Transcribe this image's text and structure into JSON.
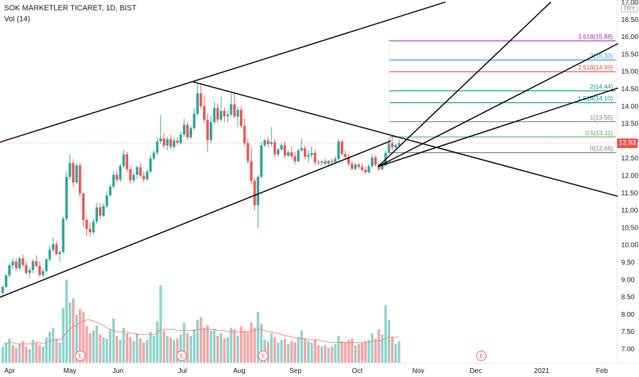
{
  "header": {
    "symbol_line": "SOK MARKETLER TICARET, 1D, BIST",
    "volume_line": "Vol (14)",
    "currency": "TRY"
  },
  "colors": {
    "up": "#26a69a",
    "down": "#ef5350",
    "vol_up": "#8dd3cd",
    "vol_down": "#f5a3a2",
    "vol_ma": "#f08a66",
    "trend": "#000000",
    "grid_text": "#131722"
  },
  "chart_data": {
    "type": "candlestick",
    "title": "SOK MARKETLER TICARET, 1D, BIST",
    "ylim": [
      6.4,
      17.0
    ],
    "last_price": "12.93",
    "y_ticks": [
      "17.00",
      "16.50",
      "16.00",
      "15.50",
      "15.00",
      "14.50",
      "14.00",
      "13.50",
      "13.00",
      "12.50",
      "12.00",
      "11.50",
      "11.00",
      "10.50",
      "10.00",
      "9.50",
      "9.00",
      "8.50",
      "8.00",
      "7.50",
      "7.00"
    ],
    "x_ticks": [
      "Apr",
      "May",
      "Jun",
      "Jul",
      "Aug",
      "Sep",
      "Oct",
      "Nov",
      "Dec",
      "2021",
      "Feb"
    ],
    "events": [
      "E",
      "E",
      "E",
      "E"
    ],
    "fib_levels": [
      {
        "label": "3.618(15.88)",
        "value": 15.88,
        "color": "#9c27b0"
      },
      {
        "label": "3(15.33)",
        "value": 15.33,
        "color": "#2196f3"
      },
      {
        "label": "2.618(14.99)",
        "value": 14.99,
        "color": "#f44336"
      },
      {
        "label": "2(14.44)",
        "value": 14.44,
        "color": "#089981"
      },
      {
        "label": "1.618(14.10)",
        "value": 14.1,
        "color": "#0097a7"
      },
      {
        "label": "1(13.55)",
        "value": 13.55,
        "color": "#787b86"
      },
      {
        "label": "0.5(13.11)",
        "value": 13.11,
        "color": "#4caf50"
      },
      {
        "label": "0(12.66)",
        "value": 12.66,
        "color": "#787b86"
      }
    ],
    "trend_lines": [
      {
        "name": "channel-upper",
        "from": [
          0.0,
          12.96
        ],
        "to": [
          0.697,
          17.0
        ]
      },
      {
        "name": "channel-lower",
        "from": [
          0.0,
          8.49
        ],
        "to": [
          0.612,
          13.0
        ]
      },
      {
        "name": "descending",
        "from": [
          0.302,
          14.7
        ],
        "to": [
          0.967,
          11.4
        ]
      },
      {
        "name": "fan-1",
        "from": [
          0.592,
          12.26
        ],
        "to": [
          0.862,
          17.0
        ]
      },
      {
        "name": "fan-2",
        "from": [
          0.592,
          12.26
        ],
        "to": [
          0.967,
          15.8
        ]
      },
      {
        "name": "fan-3",
        "from": [
          0.592,
          12.26
        ],
        "to": [
          0.967,
          14.52
        ]
      }
    ],
    "candles": [
      [
        8.61,
        8.81,
        8.55,
        8.79
      ],
      [
        8.79,
        9.18,
        8.74,
        9.12
      ],
      [
        9.12,
        9.47,
        9.06,
        9.41
      ],
      [
        9.41,
        9.62,
        9.3,
        9.52
      ],
      [
        9.52,
        9.62,
        9.24,
        9.33
      ],
      [
        9.33,
        9.66,
        9.28,
        9.61
      ],
      [
        9.61,
        9.72,
        9.36,
        9.42
      ],
      [
        9.42,
        9.52,
        9.13,
        9.19
      ],
      [
        9.19,
        9.34,
        9.03,
        9.27
      ],
      [
        9.27,
        9.59,
        9.18,
        9.53
      ],
      [
        9.53,
        9.7,
        9.34,
        9.39
      ],
      [
        9.39,
        9.52,
        9.08,
        9.13
      ],
      [
        9.13,
        9.32,
        9.06,
        9.24
      ],
      [
        9.24,
        9.62,
        9.21,
        9.58
      ],
      [
        9.58,
        9.98,
        9.52,
        9.86
      ],
      [
        9.86,
        10.21,
        9.78,
        10.02
      ],
      [
        10.02,
        10.11,
        9.69,
        9.73
      ],
      [
        9.73,
        9.85,
        9.52,
        9.79
      ],
      [
        9.79,
        10.82,
        9.74,
        10.75
      ],
      [
        10.75,
        12.09,
        10.67,
        11.96
      ],
      [
        11.96,
        12.62,
        11.88,
        12.36
      ],
      [
        12.36,
        12.47,
        11.66,
        11.8
      ],
      [
        11.8,
        12.37,
        11.74,
        12.29
      ],
      [
        12.29,
        12.36,
        11.38,
        11.48
      ],
      [
        11.48,
        11.52,
        10.52,
        10.72
      ],
      [
        10.72,
        10.77,
        10.26,
        10.46
      ],
      [
        10.46,
        10.64,
        10.25,
        10.36
      ],
      [
        10.36,
        10.78,
        10.29,
        10.67
      ],
      [
        10.67,
        11.21,
        10.6,
        11.08
      ],
      [
        11.08,
        11.21,
        10.71,
        10.84
      ],
      [
        10.84,
        11.19,
        10.8,
        11.12
      ],
      [
        11.12,
        11.55,
        11.05,
        11.43
      ],
      [
        11.43,
        11.75,
        11.38,
        11.68
      ],
      [
        11.68,
        12.11,
        11.62,
        12.02
      ],
      [
        12.02,
        12.13,
        11.79,
        11.88
      ],
      [
        11.88,
        12.34,
        11.81,
        12.27
      ],
      [
        12.27,
        12.73,
        12.21,
        12.61
      ],
      [
        12.61,
        12.68,
        12.09,
        12.18
      ],
      [
        12.18,
        12.27,
        11.76,
        11.86
      ],
      [
        11.86,
        12.09,
        11.79,
        12.02
      ],
      [
        12.02,
        12.29,
        11.9,
        12.24
      ],
      [
        12.24,
        12.38,
        11.93,
        11.99
      ],
      [
        11.99,
        12.11,
        11.81,
        11.89
      ],
      [
        11.89,
        12.17,
        11.85,
        12.11
      ],
      [
        12.11,
        12.57,
        12.07,
        12.49
      ],
      [
        12.49,
        12.73,
        12.44,
        12.66
      ],
      [
        12.66,
        13.08,
        12.59,
        12.98
      ],
      [
        12.98,
        13.74,
        12.91,
        13.07
      ],
      [
        13.07,
        13.21,
        12.79,
        12.86
      ],
      [
        12.86,
        13.12,
        12.73,
        13.05
      ],
      [
        13.05,
        13.17,
        12.76,
        12.82
      ],
      [
        12.82,
        13.09,
        12.78,
        13.01
      ],
      [
        13.01,
        13.11,
        12.88,
        12.94
      ],
      [
        12.94,
        13.26,
        12.9,
        13.18
      ],
      [
        13.18,
        13.64,
        13.11,
        13.46
      ],
      [
        13.46,
        13.54,
        13.02,
        13.1
      ],
      [
        13.1,
        13.43,
        13.05,
        13.37
      ],
      [
        13.37,
        13.93,
        13.31,
        13.78
      ],
      [
        13.78,
        14.68,
        13.71,
        14.37
      ],
      [
        14.37,
        14.66,
        13.91,
        14.0
      ],
      [
        14.0,
        14.31,
        13.52,
        13.6
      ],
      [
        13.6,
        13.79,
        12.68,
        13.02
      ],
      [
        13.02,
        13.72,
        12.94,
        13.54
      ],
      [
        13.54,
        14.12,
        13.47,
        13.95
      ],
      [
        13.95,
        14.06,
        13.52,
        13.61
      ],
      [
        13.61,
        14.27,
        13.55,
        13.86
      ],
      [
        13.86,
        13.96,
        13.52,
        13.71
      ],
      [
        13.71,
        13.89,
        13.51,
        13.76
      ],
      [
        13.76,
        14.37,
        13.69,
        14.05
      ],
      [
        14.05,
        14.38,
        13.62,
        13.7
      ],
      [
        13.7,
        13.97,
        13.4,
        13.89
      ],
      [
        13.89,
        14.0,
        13.36,
        13.43
      ],
      [
        13.43,
        13.64,
        12.85,
        12.93
      ],
      [
        12.93,
        13.06,
        12.33,
        12.41
      ],
      [
        12.41,
        12.79,
        11.74,
        11.85
      ],
      [
        11.85,
        11.92,
        11.0,
        11.14
      ],
      [
        11.14,
        12.01,
        10.48,
        11.96
      ],
      [
        11.96,
        12.97,
        11.91,
        12.87
      ],
      [
        12.87,
        13.06,
        12.83,
        13.01
      ],
      [
        13.01,
        13.12,
        12.82,
        12.91
      ],
      [
        12.91,
        13.4,
        12.84,
        12.96
      ],
      [
        12.96,
        13.06,
        12.53,
        12.61
      ],
      [
        12.61,
        12.79,
        12.55,
        12.75
      ],
      [
        12.75,
        12.94,
        12.71,
        12.88
      ],
      [
        12.88,
        12.97,
        12.49,
        12.57
      ],
      [
        12.57,
        12.73,
        12.53,
        12.67
      ],
      [
        12.67,
        12.84,
        12.5,
        12.55
      ],
      [
        12.55,
        12.67,
        12.32,
        12.41
      ],
      [
        12.41,
        12.77,
        12.37,
        12.72
      ],
      [
        12.72,
        13.06,
        12.68,
        12.79
      ],
      [
        12.79,
        12.87,
        12.47,
        12.54
      ],
      [
        12.54,
        12.72,
        12.37,
        12.59
      ],
      [
        12.59,
        12.83,
        12.51,
        12.65
      ],
      [
        12.65,
        12.74,
        12.31,
        12.38
      ],
      [
        12.38,
        12.46,
        12.3,
        12.37
      ],
      [
        12.37,
        12.44,
        12.27,
        12.41
      ],
      [
        12.41,
        12.48,
        12.31,
        12.34
      ],
      [
        12.34,
        12.45,
        12.26,
        12.42
      ],
      [
        12.42,
        12.49,
        12.33,
        12.39
      ],
      [
        12.39,
        12.56,
        12.35,
        12.48
      ],
      [
        12.48,
        13.05,
        12.43,
        12.98
      ],
      [
        12.98,
        13.02,
        12.56,
        12.62
      ],
      [
        12.62,
        12.71,
        12.46,
        12.53
      ],
      [
        12.53,
        12.62,
        12.27,
        12.34
      ],
      [
        12.34,
        12.41,
        12.15,
        12.19
      ],
      [
        12.19,
        12.36,
        12.15,
        12.31
      ],
      [
        12.31,
        12.38,
        12.2,
        12.25
      ],
      [
        12.25,
        12.35,
        12.11,
        12.16
      ],
      [
        12.16,
        12.26,
        12.03,
        12.09
      ],
      [
        12.09,
        12.33,
        12.06,
        12.27
      ],
      [
        12.27,
        12.63,
        12.22,
        12.52
      ],
      [
        12.52,
        12.58,
        12.25,
        12.31
      ],
      [
        12.31,
        12.37,
        12.13,
        12.18
      ],
      [
        12.18,
        12.32,
        12.15,
        12.29
      ],
      [
        12.29,
        12.71,
        12.28,
        12.65
      ],
      [
        12.65,
        13.08,
        12.62,
        12.93
      ],
      [
        12.93,
        13.14,
        12.72,
        12.81
      ],
      [
        12.81,
        12.92,
        12.74,
        12.88
      ],
      [
        12.88,
        13.03,
        12.82,
        12.93
      ]
    ],
    "volume": [
      [
        1.2,
        1
      ],
      [
        1.5,
        1
      ],
      [
        1.8,
        1
      ],
      [
        1.3,
        0
      ],
      [
        1.1,
        0
      ],
      [
        1.4,
        1
      ],
      [
        1.6,
        0
      ],
      [
        1.2,
        0
      ],
      [
        1.0,
        1
      ],
      [
        1.7,
        1
      ],
      [
        1.5,
        0
      ],
      [
        1.3,
        0
      ],
      [
        1.2,
        1
      ],
      [
        1.9,
        1
      ],
      [
        2.3,
        1
      ],
      [
        2.6,
        1
      ],
      [
        1.8,
        0
      ],
      [
        1.5,
        1
      ],
      [
        4.1,
        1
      ],
      [
        6.2,
        1
      ],
      [
        4.5,
        1
      ],
      [
        4.8,
        0
      ],
      [
        3.6,
        1
      ],
      [
        4.0,
        0
      ],
      [
        3.8,
        0
      ],
      [
        2.7,
        0
      ],
      [
        2.2,
        0
      ],
      [
        2.4,
        1
      ],
      [
        2.8,
        1
      ],
      [
        2.1,
        0
      ],
      [
        1.9,
        1
      ],
      [
        1.8,
        1
      ],
      [
        2.5,
        1
      ],
      [
        3.3,
        1
      ],
      [
        2.0,
        0
      ],
      [
        1.7,
        1
      ],
      [
        2.6,
        1
      ],
      [
        2.2,
        0
      ],
      [
        1.9,
        0
      ],
      [
        1.6,
        1
      ],
      [
        2.2,
        1
      ],
      [
        1.8,
        0
      ],
      [
        1.5,
        0
      ],
      [
        1.7,
        1
      ],
      [
        2.3,
        1
      ],
      [
        2.0,
        1
      ],
      [
        3.1,
        1
      ],
      [
        5.8,
        1
      ],
      [
        2.4,
        0
      ],
      [
        2.0,
        1
      ],
      [
        1.9,
        0
      ],
      [
        1.7,
        1
      ],
      [
        1.8,
        0
      ],
      [
        2.1,
        1
      ],
      [
        3.0,
        1
      ],
      [
        2.2,
        0
      ],
      [
        2.0,
        1
      ],
      [
        2.5,
        1
      ],
      [
        3.2,
        1
      ],
      [
        3.4,
        0
      ],
      [
        2.6,
        0
      ],
      [
        2.8,
        0
      ],
      [
        2.4,
        1
      ],
      [
        2.5,
        1
      ],
      [
        2.0,
        0
      ],
      [
        2.2,
        1
      ],
      [
        1.8,
        0
      ],
      [
        1.9,
        1
      ],
      [
        2.6,
        1
      ],
      [
        2.5,
        0
      ],
      [
        2.0,
        1
      ],
      [
        2.7,
        0
      ],
      [
        2.4,
        0
      ],
      [
        2.3,
        0
      ],
      [
        3.0,
        0
      ],
      [
        2.6,
        0
      ],
      [
        3.8,
        1
      ],
      [
        2.9,
        1
      ],
      [
        1.7,
        1
      ],
      [
        1.6,
        0
      ],
      [
        2.2,
        1
      ],
      [
        1.9,
        0
      ],
      [
        1.5,
        1
      ],
      [
        1.7,
        1
      ],
      [
        1.8,
        0
      ],
      [
        1.4,
        1
      ],
      [
        1.6,
        0
      ],
      [
        1.5,
        0
      ],
      [
        1.9,
        1
      ],
      [
        2.4,
        1
      ],
      [
        1.8,
        0
      ],
      [
        1.6,
        1
      ],
      [
        1.5,
        1
      ],
      [
        1.7,
        0
      ],
      [
        1.3,
        0
      ],
      [
        1.2,
        1
      ],
      [
        1.3,
        0
      ],
      [
        1.1,
        1
      ],
      [
        1.2,
        0
      ],
      [
        1.4,
        1
      ],
      [
        2.0,
        1
      ],
      [
        1.6,
        0
      ],
      [
        1.5,
        0
      ],
      [
        1.7,
        0
      ],
      [
        1.8,
        0
      ],
      [
        1.3,
        1
      ],
      [
        1.4,
        0
      ],
      [
        1.5,
        0
      ],
      [
        1.6,
        0
      ],
      [
        1.7,
        1
      ],
      [
        2.2,
        1
      ],
      [
        1.8,
        0
      ],
      [
        2.5,
        0
      ],
      [
        2.1,
        1
      ],
      [
        4.3,
        1
      ],
      [
        3.2,
        1
      ],
      [
        1.9,
        0
      ],
      [
        1.4,
        1
      ],
      [
        1.6,
        1
      ]
    ],
    "volume_ma": [
      1.4,
      1.4,
      1.5,
      1.5,
      1.4,
      1.4,
      1.4,
      1.4,
      1.4,
      1.4,
      1.5,
      1.5,
      1.4,
      1.5,
      1.6,
      1.7,
      1.7,
      1.7,
      1.9,
      2.3,
      2.5,
      2.7,
      2.8,
      3.0,
      3.1,
      3.2,
      3.2,
      3.1,
      3.0,
      2.9,
      2.8,
      2.6,
      2.5,
      2.4,
      2.3,
      2.3,
      2.3,
      2.3,
      2.2,
      2.2,
      2.1,
      2.1,
      2.1,
      2.1,
      2.1,
      2.1,
      2.2,
      2.5,
      2.5,
      2.5,
      2.5,
      2.5,
      2.4,
      2.4,
      2.4,
      2.4,
      2.4,
      2.4,
      2.5,
      2.5,
      2.5,
      2.5,
      2.5,
      2.5,
      2.4,
      2.4,
      2.4,
      2.3,
      2.3,
      2.3,
      2.3,
      2.3,
      2.3,
      2.3,
      2.4,
      2.4,
      2.5,
      2.5,
      2.4,
      2.3,
      2.3,
      2.2,
      2.2,
      2.1,
      2.0,
      2.0,
      1.9,
      1.9,
      1.8,
      1.8,
      1.8,
      1.7,
      1.7,
      1.7,
      1.7,
      1.6,
      1.6,
      1.5,
      1.5,
      1.5,
      1.5,
      1.5,
      1.5,
      1.5,
      1.5,
      1.5,
      1.5,
      1.5,
      1.5,
      1.5,
      1.6,
      1.6,
      1.6,
      1.7,
      1.8,
      1.9,
      1.9,
      1.9,
      1.9
    ]
  }
}
